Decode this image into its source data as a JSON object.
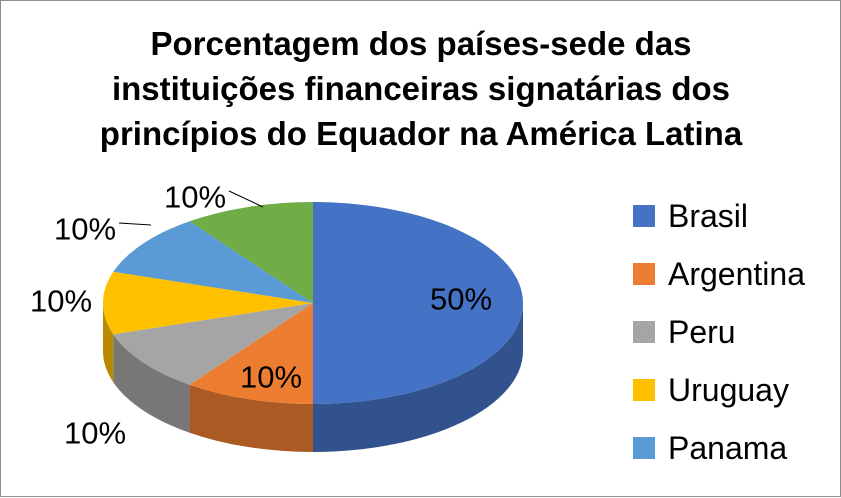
{
  "chart_data": {
    "type": "pie",
    "title_lines": [
      "Porcentagem dos países-sede das",
      "instituições financeiras signatárias dos",
      "princípios do Equador na América Latina"
    ],
    "categories": [
      "Brasil",
      "Argentina",
      "Peru",
      "Uruguay",
      "Panama",
      ""
    ],
    "values": [
      50,
      10,
      10,
      10,
      10,
      10
    ],
    "labels": [
      "50%",
      "10%",
      "10%",
      "10%",
      "10%",
      "10%"
    ],
    "colors": [
      "#4472C4",
      "#ED7D31",
      "#A5A5A5",
      "#FFC000",
      "#5B9BD5",
      "#70AD47"
    ],
    "legend_position": "right",
    "style": "3d"
  }
}
